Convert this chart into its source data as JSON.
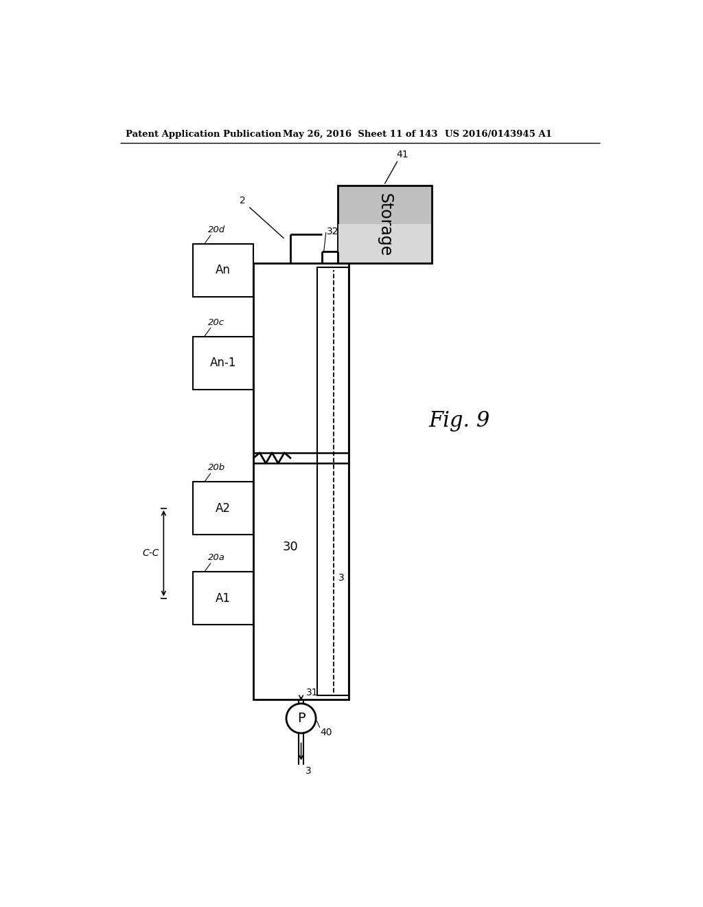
{
  "header_left": "Patent Application Publication",
  "header_mid": "May 26, 2016  Sheet 11 of 143",
  "header_right": "US 2016/0143945 A1",
  "fig_label": "Fig. 9",
  "background": "#ffffff",
  "line_color": "#000000",
  "storage_fill_top": "#b0b0b0",
  "storage_fill_bot": "#d8d8d8",
  "storage_label": "Storage",
  "storage_num": "41",
  "main_rect_num": "2",
  "pipe_num": "32",
  "reactor_num": "30",
  "pipe3_num": "3",
  "pump_num": "31",
  "pump_label": "P",
  "pump_circle_num": "40",
  "chambers": [
    {
      "label": "A1",
      "num": "20a"
    },
    {
      "label": "A2",
      "num": "20b"
    },
    {
      "label": "An-1",
      "num": "20c"
    },
    {
      "label": "An",
      "num": "20d"
    }
  ],
  "cc_label": "C-C"
}
